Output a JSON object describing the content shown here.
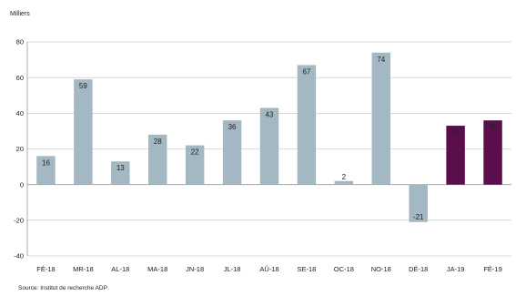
{
  "chart_data": {
    "type": "bar",
    "unit_label": "Milliers",
    "source": "Source: Institut de recherche ADP",
    "categories": [
      "FÉ-18",
      "MR-18",
      "AL-18",
      "MA-18",
      "JN-18",
      "JL-18",
      "AÛ-18",
      "SE-18",
      "OC-18",
      "NO-18",
      "DÉ-18",
      "JA-19",
      "FÉ-19"
    ],
    "values": [
      16,
      59,
      13,
      28,
      22,
      36,
      43,
      67,
      2,
      74,
      -21,
      33,
      36
    ],
    "value_labels": [
      "16",
      "59",
      "13",
      "28",
      "22",
      "36",
      "43",
      "67",
      "2",
      "74",
      "-21",
      "33",
      "36"
    ],
    "ylim": [
      -40,
      80
    ],
    "yticks": [
      -40,
      -20,
      0,
      20,
      40,
      60,
      80
    ],
    "grid": true,
    "colors": {
      "default_bar": "#a3b8c3",
      "highlight_bar": "#5b0e4c",
      "highlight_categories": [
        "JA-19",
        "FÉ-19"
      ]
    }
  }
}
